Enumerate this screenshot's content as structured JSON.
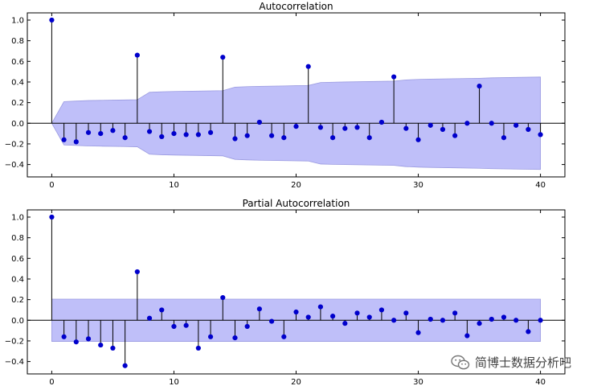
{
  "chart_data": [
    {
      "type": "stem",
      "title": "Autocorrelation",
      "xlim": [
        -2,
        42
      ],
      "ylim": [
        -0.52,
        1.07
      ],
      "xticks": [
        0,
        10,
        20,
        30,
        40
      ],
      "yticks": [
        -0.4,
        -0.2,
        0.0,
        0.2,
        0.4,
        0.6,
        0.8,
        1.0
      ],
      "ytick_labels": [
        "−0.4",
        "−0.2",
        "0.0",
        "0.2",
        "0.4",
        "0.6",
        "0.8",
        "1.0"
      ],
      "lags": [
        0,
        1,
        2,
        3,
        4,
        5,
        6,
        7,
        8,
        9,
        10,
        11,
        12,
        13,
        14,
        15,
        16,
        17,
        18,
        19,
        20,
        21,
        22,
        23,
        24,
        25,
        26,
        27,
        28,
        29,
        30,
        31,
        32,
        33,
        34,
        35,
        36,
        37,
        38,
        39,
        40
      ],
      "values": [
        1.0,
        -0.16,
        -0.18,
        -0.09,
        -0.1,
        -0.07,
        -0.14,
        0.66,
        -0.08,
        -0.13,
        -0.1,
        -0.11,
        -0.11,
        -0.09,
        0.64,
        -0.15,
        -0.12,
        0.01,
        -0.12,
        -0.14,
        -0.03,
        0.55,
        -0.04,
        -0.14,
        -0.05,
        -0.04,
        -0.14,
        0.01,
        0.45,
        -0.05,
        -0.16,
        -0.02,
        -0.06,
        -0.12,
        0.0,
        0.36,
        0.0,
        -0.14,
        -0.02,
        -0.06,
        -0.11
      ],
      "confidence_band": [
        0.0,
        0.21,
        0.215,
        0.22,
        0.222,
        0.224,
        0.226,
        0.228,
        0.3,
        0.305,
        0.308,
        0.31,
        0.312,
        0.314,
        0.316,
        0.35,
        0.355,
        0.358,
        0.36,
        0.362,
        0.364,
        0.366,
        0.395,
        0.398,
        0.4,
        0.402,
        0.404,
        0.406,
        0.408,
        0.42,
        0.425,
        0.428,
        0.43,
        0.432,
        0.434,
        0.436,
        0.44,
        0.442,
        0.444,
        0.446,
        0.448
      ],
      "colors": {
        "marker": "#0000cc",
        "band": "#b4b4f8",
        "band_edge": "#9a9ae0",
        "stem": "#000000"
      }
    },
    {
      "type": "stem",
      "title": "Partial Autocorrelation",
      "xlim": [
        -2,
        42
      ],
      "ylim": [
        -0.52,
        1.07
      ],
      "xticks": [
        0,
        10,
        20,
        30,
        40
      ],
      "yticks": [
        -0.4,
        -0.2,
        0.0,
        0.2,
        0.4,
        0.6,
        0.8,
        1.0
      ],
      "ytick_labels": [
        "−0.4",
        "−0.2",
        "0.0",
        "0.2",
        "0.4",
        "0.6",
        "0.8",
        "1.0"
      ],
      "lags": [
        0,
        1,
        2,
        3,
        4,
        5,
        6,
        7,
        8,
        9,
        10,
        11,
        12,
        13,
        14,
        15,
        16,
        17,
        18,
        19,
        20,
        21,
        22,
        23,
        24,
        25,
        26,
        27,
        28,
        29,
        30,
        31,
        32,
        33,
        34,
        35,
        36,
        37,
        38,
        39,
        40
      ],
      "values": [
        1.0,
        -0.16,
        -0.21,
        -0.18,
        -0.24,
        -0.27,
        -0.44,
        0.47,
        0.02,
        0.1,
        -0.06,
        -0.05,
        -0.27,
        -0.16,
        0.22,
        -0.17,
        -0.06,
        0.11,
        -0.01,
        -0.16,
        0.08,
        0.03,
        0.13,
        0.04,
        -0.03,
        0.07,
        0.03,
        0.1,
        0.0,
        0.07,
        -0.12,
        0.01,
        0.0,
        0.07,
        -0.15,
        -0.03,
        0.01,
        0.03,
        0.0,
        -0.11,
        0.0
      ],
      "confidence_band": [
        0.205,
        0.205,
        0.205,
        0.205,
        0.205,
        0.205,
        0.205,
        0.205,
        0.205,
        0.205,
        0.205,
        0.205,
        0.205,
        0.205,
        0.205,
        0.205,
        0.205,
        0.205,
        0.205,
        0.205,
        0.205,
        0.205,
        0.205,
        0.205,
        0.205,
        0.205,
        0.205,
        0.205,
        0.205,
        0.205,
        0.205,
        0.205,
        0.205,
        0.205,
        0.205,
        0.205,
        0.205,
        0.205,
        0.205,
        0.205,
        0.205
      ],
      "colors": {
        "marker": "#0000cc",
        "band": "#b4b4f8",
        "band_edge": "#9a9ae0",
        "stem": "#000000"
      }
    }
  ],
  "watermark": {
    "text": "简博士数据分析吧",
    "icon": "wechat-icon"
  }
}
